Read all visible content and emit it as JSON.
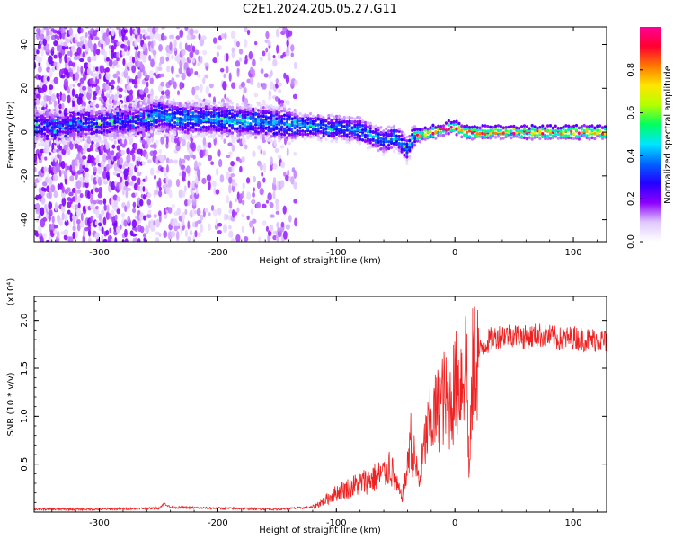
{
  "title": "C2E1.2024.205.05.27.G11",
  "chart_data": [
    {
      "type": "heatmap",
      "xlabel": "Height of straight line (km)",
      "ylabel": "Frequency (Hz)",
      "xlim": [
        -355,
        128
      ],
      "ylim": [
        -50,
        48
      ],
      "xticks": [
        -300,
        -200,
        -100,
        0,
        100
      ],
      "yticks": [
        -40,
        -20,
        0,
        20,
        40
      ],
      "grid": false,
      "colorbar": {
        "label": "Normalized spectral amplitude",
        "range": [
          0.0,
          1.0
        ],
        "ticks": [
          "0.0",
          "0.2",
          "0.4",
          "0.6",
          "0.8"
        ],
        "colors": [
          "#ffffff",
          "#e0c8ff",
          "#8c00ff",
          "#2400ff",
          "#0064ff",
          "#00e6ff",
          "#00ff60",
          "#b4ff00",
          "#ffe600",
          "#ff7800",
          "#ff0030",
          "#ff0096"
        ]
      },
      "ridge": {
        "x": [
          -340,
          -300,
          -262,
          -250,
          -230,
          -200,
          -170,
          -150,
          -120,
          -100,
          -80,
          -60,
          -50,
          -40,
          -35,
          -20,
          -10,
          -2,
          10,
          40,
          80,
          128
        ],
        "y": [
          3,
          4,
          6,
          8,
          6,
          6,
          5,
          4,
          3,
          2,
          1,
          -4,
          -2,
          -8,
          -2,
          0,
          1,
          3,
          0,
          0,
          0,
          0
        ]
      }
    },
    {
      "type": "line",
      "xlabel": "Height of straight line (km)",
      "ylabel": "SNR (10 * v/v)",
      "y_multiplier": "(x10⁴)",
      "xlim": [
        -355,
        128
      ],
      "ylim": [
        0,
        2.25
      ],
      "xticks": [
        -300,
        -200,
        -100,
        0,
        100
      ],
      "yticks": [
        "0.5",
        "1.0",
        "1.5",
        "2.0"
      ],
      "grid": false,
      "series": [
        {
          "color": "#ee2222",
          "x": [
            -355,
            -300,
            -250,
            -245,
            -240,
            -200,
            -150,
            -120,
            -110,
            -100,
            -90,
            -80,
            -70,
            -60,
            -55,
            -50,
            -45,
            -40,
            -38,
            -35,
            -30,
            -25,
            -20,
            -15,
            -10,
            -5,
            0,
            5,
            10,
            12,
            15,
            20,
            25,
            30,
            40,
            50,
            60,
            70,
            80,
            90,
            100,
            110,
            120,
            128
          ],
          "y": [
            0.03,
            0.03,
            0.04,
            0.09,
            0.05,
            0.04,
            0.03,
            0.05,
            0.12,
            0.2,
            0.25,
            0.3,
            0.35,
            0.4,
            0.5,
            0.3,
            0.15,
            0.45,
            0.8,
            0.6,
            0.3,
            0.75,
            0.95,
            1.05,
            1.2,
            1.1,
            1.3,
            1.4,
            1.6,
            0.3,
            1.5,
            1.65,
            1.75,
            1.8,
            1.85,
            1.85,
            1.82,
            1.85,
            1.83,
            1.8,
            1.82,
            1.8,
            1.8,
            1.78
          ]
        }
      ]
    }
  ]
}
